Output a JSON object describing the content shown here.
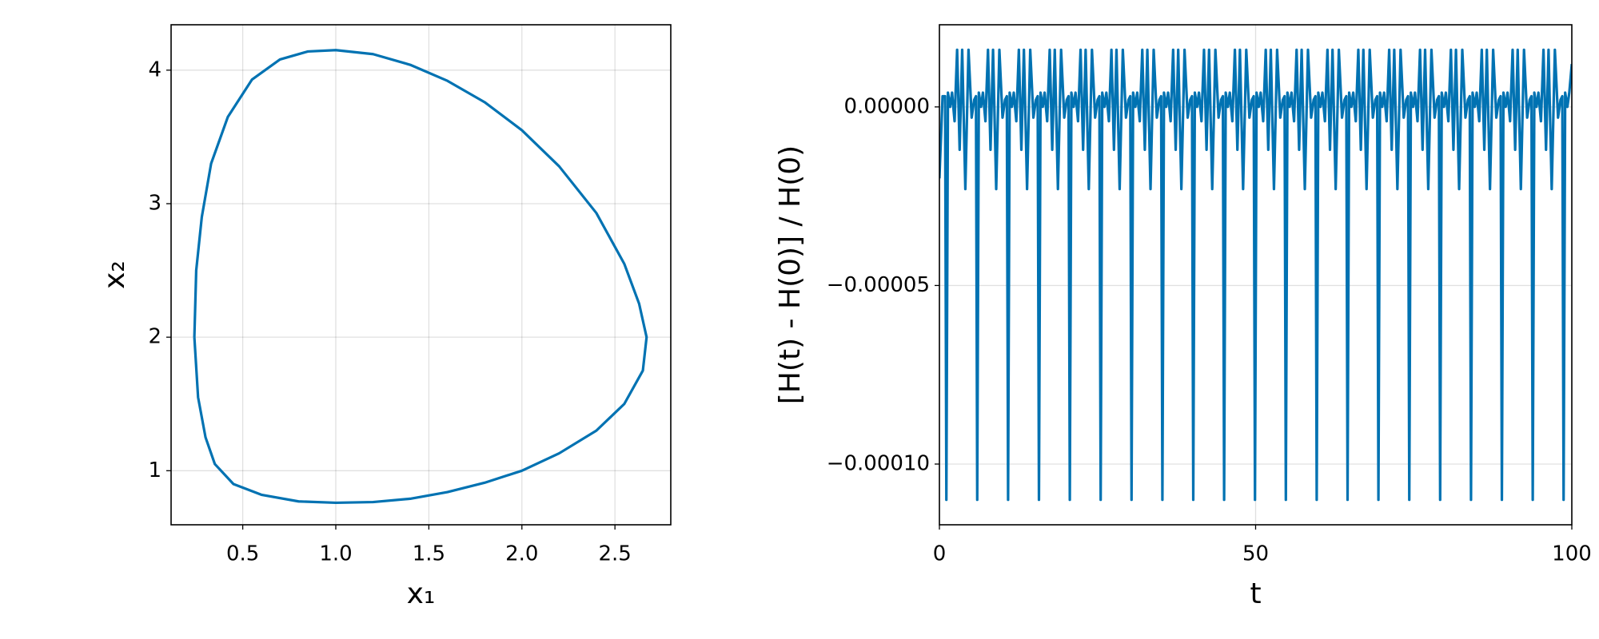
{
  "chart_data": [
    {
      "type": "line",
      "xlabel": "x₁",
      "ylabel": "x₂",
      "grid": true,
      "xlim": [
        0.115,
        2.8
      ],
      "ylim": [
        0.595,
        4.34
      ],
      "xticks": [
        {
          "value": 0.5,
          "label": "0.5"
        },
        {
          "value": 1.0,
          "label": "1.0"
        },
        {
          "value": 1.5,
          "label": "1.5"
        },
        {
          "value": 2.0,
          "label": "2.0"
        },
        {
          "value": 2.5,
          "label": "2.5"
        }
      ],
      "yticks": [
        1,
        2,
        3,
        4
      ],
      "series": [
        {
          "color": "#0072b2",
          "x": [
            0.24,
            0.25,
            0.28,
            0.33,
            0.42,
            0.55,
            0.7,
            0.85,
            1.0,
            1.2,
            1.4,
            1.6,
            1.8,
            2.0,
            2.2,
            2.4,
            2.55,
            2.63,
            2.67,
            2.65,
            2.55,
            2.4,
            2.2,
            2.0,
            1.8,
            1.6,
            1.4,
            1.2,
            1.0,
            0.8,
            0.6,
            0.45,
            0.35,
            0.3,
            0.26,
            0.24
          ],
          "values": [
            2.0,
            2.5,
            2.9,
            3.3,
            3.65,
            3.93,
            4.08,
            4.14,
            4.15,
            4.12,
            4.04,
            3.92,
            3.76,
            3.55,
            3.28,
            2.93,
            2.55,
            2.25,
            2.0,
            1.75,
            1.5,
            1.3,
            1.13,
            1.0,
            0.91,
            0.84,
            0.79,
            0.765,
            0.76,
            0.77,
            0.82,
            0.9,
            1.05,
            1.25,
            1.55,
            2.0
          ]
        }
      ]
    },
    {
      "type": "line",
      "xlabel": "t",
      "ylabel": "[H(t) - H(0)] / H(0)",
      "grid": true,
      "xlim": [
        0,
        100
      ],
      "ylim": [
        -0.000117,
        2.3e-05
      ],
      "xticks": [
        0,
        50,
        100
      ],
      "yticks": [
        {
          "value": 0,
          "label": "0.00000"
        },
        {
          "value": -5e-05,
          "label": "−0.00005"
        },
        {
          "value": -0.0001,
          "label": "−0.00010"
        }
      ],
      "series": [
        {
          "color": "#0072b2",
          "x": [
            0,
            0.5,
            0.9,
            1.1,
            1.35,
            1.7,
            2.0,
            2.4,
            2.8,
            3.2,
            3.6,
            4.1,
            4.6,
            5.1,
            5.5,
            5.78,
            5.98,
            6.23,
            6.58,
            6.88,
            7.28,
            7.68,
            8.08,
            8.48,
            8.98,
            9.48,
            9.98,
            10.38,
            10.66,
            10.86,
            11.11,
            11.46,
            11.76,
            12.16,
            12.56,
            12.96,
            13.36,
            13.86,
            14.36,
            14.86,
            15.26,
            15.54,
            15.74,
            15.99,
            16.34,
            16.64,
            17.04,
            17.44,
            17.84,
            18.24,
            18.74,
            19.24,
            19.74,
            20.14,
            20.42,
            20.62,
            20.87,
            21.22,
            21.52,
            21.92,
            22.32,
            22.72,
            23.12,
            23.62,
            24.12,
            24.62,
            25.02,
            25.3,
            25.5,
            25.75,
            26.1,
            26.4,
            26.8,
            27.2,
            27.6,
            28.0,
            28.5,
            29.0,
            29.5,
            29.9,
            30.18,
            30.38,
            30.63,
            30.98,
            31.28,
            31.68,
            32.08,
            32.48,
            32.88,
            33.38,
            33.88,
            34.38,
            34.78,
            35.06,
            35.26,
            35.51,
            35.86,
            36.16,
            36.56,
            36.96,
            37.36,
            37.76,
            38.26,
            38.76,
            39.26,
            39.66,
            39.94,
            40.14,
            40.39,
            40.74,
            41.04,
            41.44,
            41.84,
            42.24,
            42.64,
            43.14,
            43.64,
            44.14,
            44.54,
            44.82,
            45.02,
            45.27,
            45.62,
            45.92,
            46.32,
            46.72,
            47.12,
            47.52,
            48.02,
            48.52,
            49.02,
            49.42,
            49.7,
            49.9,
            50.15,
            50.5,
            50.8,
            51.2,
            51.6,
            52.0,
            52.4,
            52.9,
            53.4,
            53.9,
            54.3,
            54.58,
            54.78,
            55.03,
            55.38,
            55.68,
            56.08,
            56.48,
            56.88,
            57.28,
            57.78,
            58.28,
            58.78,
            59.18,
            59.46,
            59.66,
            59.91,
            60.26,
            60.56,
            60.96,
            61.36,
            61.76,
            62.16,
            62.66,
            63.16,
            63.66,
            64.06,
            64.34,
            64.54,
            64.79,
            65.14,
            65.44,
            65.84,
            66.24,
            66.64,
            67.04,
            67.54,
            68.04,
            68.54,
            68.94,
            69.22,
            69.42,
            69.67,
            70.02,
            70.32,
            70.72,
            71.12,
            71.52,
            71.92,
            72.42,
            72.92,
            73.42,
            73.82,
            74.1,
            74.3,
            74.55,
            74.9,
            75.2,
            75.6,
            76.0,
            76.4,
            76.8,
            77.3,
            77.8,
            78.3,
            78.7,
            78.98,
            79.18,
            79.43,
            79.78,
            80.08,
            80.48,
            80.88,
            81.28,
            81.68,
            82.18,
            82.68,
            83.18,
            83.58,
            83.86,
            84.06,
            84.31,
            84.66,
            84.96,
            85.36,
            85.76,
            86.16,
            86.56,
            87.06,
            87.56,
            88.06,
            88.46,
            88.74,
            88.94,
            89.19,
            89.54,
            89.84,
            90.24,
            90.64,
            91.04,
            91.44,
            91.94,
            92.44,
            92.94,
            93.34,
            93.62,
            93.82,
            94.07,
            94.42,
            94.72,
            95.12,
            95.52,
            95.92,
            96.32,
            96.82,
            97.32,
            97.82,
            98.22,
            98.5,
            98.7,
            98.95,
            99.3,
            99.6,
            100.0
          ],
          "values": [
            -2e-05,
            3e-06,
            3e-06,
            -0.00011,
            4e-06,
            0,
            4e-06,
            -4e-06,
            1.6e-05,
            -1.2e-05,
            1.6e-05,
            -2.3e-05,
            1.6e-05,
            -3e-06,
            2e-06,
            3e-06,
            -0.00011,
            4e-06,
            0,
            4e-06,
            -4e-06,
            1.6e-05,
            -1.2e-05,
            1.6e-05,
            -2.3e-05,
            1.6e-05,
            -3e-06,
            2e-06,
            3e-06,
            -0.00011,
            4e-06,
            0,
            4e-06,
            -4e-06,
            1.6e-05,
            -1.2e-05,
            1.6e-05,
            -2.3e-05,
            1.6e-05,
            -3e-06,
            2e-06,
            3e-06,
            -0.00011,
            4e-06,
            0,
            4e-06,
            -4e-06,
            1.6e-05,
            -1.2e-05,
            1.6e-05,
            -2.3e-05,
            1.6e-05,
            -3e-06,
            2e-06,
            3e-06,
            -0.00011,
            4e-06,
            0,
            4e-06,
            -4e-06,
            1.6e-05,
            -1.2e-05,
            1.6e-05,
            -2.3e-05,
            1.6e-05,
            -3e-06,
            2e-06,
            3e-06,
            -0.00011,
            4e-06,
            0,
            4e-06,
            -4e-06,
            1.6e-05,
            -1.2e-05,
            1.6e-05,
            -2.3e-05,
            1.6e-05,
            -3e-06,
            2e-06,
            3e-06,
            -0.00011,
            4e-06,
            0,
            4e-06,
            -4e-06,
            1.6e-05,
            -1.2e-05,
            1.6e-05,
            -2.3e-05,
            1.6e-05,
            -3e-06,
            2e-06,
            3e-06,
            -0.00011,
            4e-06,
            0,
            4e-06,
            -4e-06,
            1.6e-05,
            -1.2e-05,
            1.6e-05,
            -2.3e-05,
            1.6e-05,
            -3e-06,
            2e-06,
            3e-06,
            -0.00011,
            4e-06,
            0,
            4e-06,
            -4e-06,
            1.6e-05,
            -1.2e-05,
            1.6e-05,
            -2.3e-05,
            1.6e-05,
            -3e-06,
            2e-06,
            3e-06,
            -0.00011,
            4e-06,
            0,
            4e-06,
            -4e-06,
            1.6e-05,
            -1.2e-05,
            1.6e-05,
            -2.3e-05,
            1.6e-05,
            -3e-06,
            2e-06,
            3e-06,
            -0.00011,
            4e-06,
            0,
            4e-06,
            -4e-06,
            1.6e-05,
            -1.2e-05,
            1.6e-05,
            -2.3e-05,
            1.6e-05,
            -3e-06,
            2e-06,
            3e-06,
            -0.00011,
            4e-06,
            0,
            4e-06,
            -4e-06,
            1.6e-05,
            -1.2e-05,
            1.6e-05,
            -2.3e-05,
            1.6e-05,
            -3e-06,
            2e-06,
            3e-06,
            -0.00011,
            4e-06,
            0,
            4e-06,
            -4e-06,
            1.6e-05,
            -1.2e-05,
            1.6e-05,
            -2.3e-05,
            1.6e-05,
            -3e-06,
            2e-06,
            3e-06,
            -0.00011,
            4e-06,
            0,
            4e-06,
            -4e-06,
            1.6e-05,
            -1.2e-05,
            1.6e-05,
            -2.3e-05,
            1.6e-05,
            -3e-06,
            2e-06,
            3e-06,
            -0.00011,
            4e-06,
            0,
            4e-06,
            -4e-06,
            1.6e-05,
            -1.2e-05,
            1.6e-05,
            -2.3e-05,
            1.6e-05,
            -3e-06,
            2e-06,
            3e-06,
            -0.00011,
            4e-06,
            0,
            4e-06,
            -4e-06,
            1.6e-05,
            -1.2e-05,
            1.6e-05,
            -2.3e-05,
            1.6e-05,
            -3e-06,
            2e-06,
            3e-06,
            -0.00011,
            4e-06,
            0,
            4e-06,
            -4e-06,
            1.6e-05,
            -1.2e-05,
            1.6e-05,
            -2.3e-05,
            1.6e-05,
            -3e-06,
            2e-06,
            3e-06,
            -0.00011,
            4e-06,
            0,
            4e-06,
            -4e-06,
            1.6e-05,
            -1.2e-05,
            1.6e-05,
            -2.3e-05,
            1.6e-05,
            -3e-06,
            2e-06,
            3e-06,
            -0.00011,
            4e-06,
            0,
            4e-06,
            -4e-06,
            1.6e-05,
            -1.2e-05,
            1.6e-05,
            -2.3e-05,
            1.6e-05,
            -3e-06,
            2e-06,
            3e-06,
            -0.00011,
            4e-06,
            0,
            4e-06,
            -4e-06,
            1.6e-05,
            -1.2e-05,
            1.6e-05,
            -2.3e-05,
            1.6e-05,
            -3e-06,
            2e-06,
            3e-06,
            -0.00011,
            4e-06,
            0,
            4e-06,
            1.2e-05
          ]
        }
      ]
    }
  ]
}
